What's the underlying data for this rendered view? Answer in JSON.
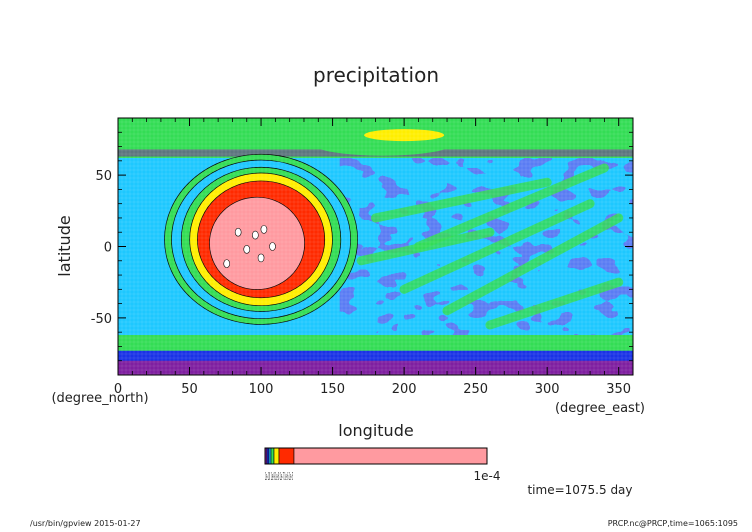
{
  "chart_data": {
    "type": "heatmap",
    "title": "precipitation",
    "xlabel": "longitude",
    "ylabel": "latitude",
    "x_units": "(degree_east)",
    "y_units": "(degree_north)",
    "xlim": [
      0,
      360
    ],
    "ylim": [
      -90,
      90
    ],
    "x_ticks": [
      0,
      50,
      100,
      150,
      200,
      250,
      300,
      350
    ],
    "y_ticks": [
      50,
      0,
      -50
    ],
    "colorbar": {
      "label_left": "1e-10 1e-9 1e-8 1e-7 1e-6 1e-5",
      "label_right": "1e-4",
      "levels": [
        "1e-10",
        "1e-9",
        "1e-8",
        "1e-7",
        "1e-6",
        "1e-5",
        "1e-4"
      ]
    },
    "level_colors": [
      "#7f1fa0",
      "#1a32e6",
      "#1ec8ff",
      "#33dd55",
      "#ffee00",
      "#ff2a00",
      "#ff9aa0"
    ],
    "feature": {
      "type": "circular precipitation maximum",
      "center_lon": 100,
      "center_lat": 5
    },
    "annotation": "time=1075.5  day"
  },
  "footer": {
    "left": "/usr/bin/gpview  2015-01-27",
    "right": "PRCP.nc@PRCP,time=1065:1095"
  }
}
